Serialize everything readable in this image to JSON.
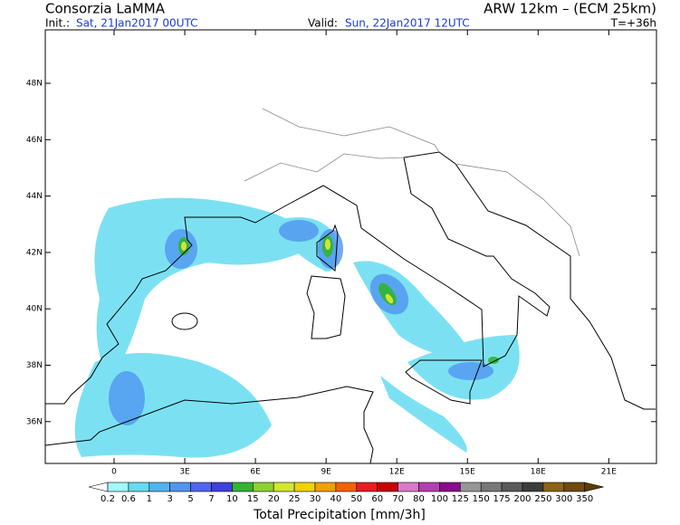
{
  "header": {
    "title": "Consorzia LaMMA",
    "model": "ARW 12km – (ECM 25km)",
    "init_label": "Init.:",
    "init_time": "Sat, 21Jan2017 00UTC",
    "valid_label": "Valid:",
    "valid_time": "Sun, 22Jan2017 12UTC",
    "lead": "T=+36h"
  },
  "map": {
    "lat_labels": [
      "48N",
      "46N",
      "44N",
      "42N",
      "40N",
      "38N",
      "36N"
    ],
    "lon_labels": [
      "0",
      "3E",
      "6E",
      "9E",
      "12E",
      "15E",
      "18E",
      "21E"
    ]
  },
  "colorbar": {
    "title": "Total Precipitation [mm/3h]",
    "levels": [
      0.2,
      0.6,
      1,
      3,
      5,
      7,
      10,
      15,
      20,
      25,
      30,
      40,
      50,
      60,
      70,
      80,
      100,
      125,
      150,
      175,
      200,
      250,
      300,
      350
    ],
    "colors": [
      "#ffffff",
      "#a0fafa",
      "#64dcf0",
      "#50b4f0",
      "#5096f0",
      "#5064f0",
      "#4040d8",
      "#32b432",
      "#8cd232",
      "#d2e632",
      "#f0d200",
      "#f0a000",
      "#f06400",
      "#e61e1e",
      "#c80000",
      "#dc78c8",
      "#b43cb4",
      "#8c0a8c",
      "#969696",
      "#787878",
      "#5a5a5a",
      "#3c3c3c",
      "#8c6414",
      "#6e4b0a",
      "#5a3c00"
    ]
  }
}
